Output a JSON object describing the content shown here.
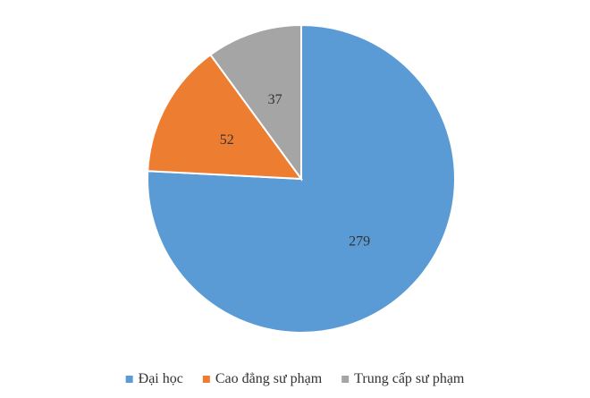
{
  "chart_data": {
    "type": "pie",
    "title": "",
    "legend_position": "bottom",
    "slices": [
      {
        "label": "Đại học",
        "value": 279,
        "color": "#5B9BD5"
      },
      {
        "label": "Cao đẳng sư phạm",
        "value": 52,
        "color": "#ED7D31"
      },
      {
        "label": "Trung cấp sư phạm",
        "value": 37,
        "color": "#A5A5A5"
      }
    ]
  }
}
